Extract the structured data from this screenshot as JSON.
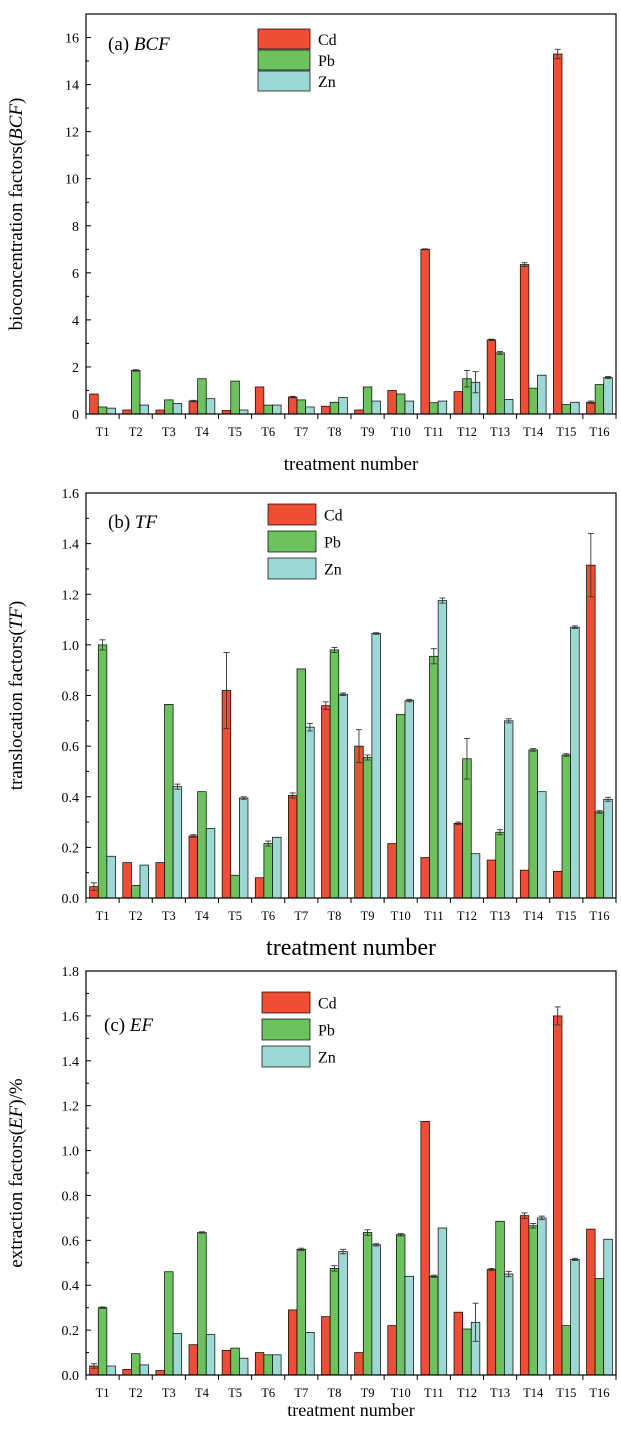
{
  "colors": {
    "Cd": "#f04e34",
    "Pb": "#6cc25c",
    "Zn": "#9ed8d4"
  },
  "chart_data": [
    {
      "type": "bar",
      "title_prefix": "(a) ",
      "title_italic": "BCF",
      "ylabel": "bioconcentration factors(BCF)",
      "xlabel": "treatment number",
      "ylim": [
        0,
        17
      ],
      "yticks": [
        0,
        2,
        4,
        6,
        8,
        10,
        12,
        14,
        16
      ],
      "ytick_labels": [
        "0",
        "2",
        "4",
        "6",
        "8",
        "10",
        "12",
        "14",
        "16"
      ],
      "categories": [
        "T1",
        "T2",
        "T3",
        "T4",
        "T5",
        "T6",
        "T7",
        "T8",
        "T9",
        "T10",
        "T11",
        "T12",
        "T13",
        "T14",
        "T15",
        "T16"
      ],
      "series": [
        {
          "name": "Cd",
          "values": [
            0.85,
            0.17,
            0.17,
            0.55,
            0.15,
            1.15,
            0.72,
            0.33,
            0.17,
            1.0,
            7.0,
            0.95,
            3.15,
            6.35,
            15.3,
            0.5
          ],
          "errors": [
            0,
            0,
            0,
            0.03,
            0,
            0,
            0.03,
            0,
            0,
            0,
            0.02,
            0,
            0.03,
            0.08,
            0.2,
            0.05
          ]
        },
        {
          "name": "Pb",
          "values": [
            0.3,
            1.85,
            0.6,
            1.5,
            1.4,
            0.38,
            0.6,
            0.5,
            1.15,
            0.85,
            0.48,
            1.5,
            2.6,
            1.1,
            0.4,
            1.25
          ],
          "errors": [
            0,
            0.03,
            0,
            0,
            0,
            0,
            0,
            0,
            0,
            0,
            0,
            0.35,
            0.06,
            0,
            0,
            0
          ]
        },
        {
          "name": "Zn",
          "values": [
            0.25,
            0.38,
            0.45,
            0.65,
            0.17,
            0.38,
            0.3,
            0.7,
            0.55,
            0.55,
            0.55,
            1.35,
            0.62,
            1.65,
            0.5,
            1.55
          ],
          "errors": [
            0,
            0,
            0,
            0,
            0,
            0,
            0,
            0,
            0,
            0,
            0,
            0.45,
            0,
            0,
            0,
            0.04
          ]
        }
      ]
    },
    {
      "type": "bar",
      "title_prefix": "(b) ",
      "title_italic": "TF",
      "ylabel": "translocation factors(TF)",
      "xlabel": "treatment number",
      "ylim": [
        0,
        1.6
      ],
      "yticks": [
        0,
        0.2,
        0.4,
        0.6,
        0.8,
        1.0,
        1.2,
        1.4,
        1.6
      ],
      "ytick_labels": [
        "0.0",
        "0.2",
        "0.4",
        "0.6",
        "0.8",
        "1.0",
        "1.2",
        "1.4",
        "1.6"
      ],
      "categories": [
        "T1",
        "T2",
        "T3",
        "T4",
        "T5",
        "T6",
        "T7",
        "T8",
        "T9",
        "T10",
        "T11",
        "T12",
        "T13",
        "T14",
        "T15",
        "T16"
      ],
      "series": [
        {
          "name": "Cd",
          "values": [
            0.045,
            0.14,
            0.14,
            0.245,
            0.82,
            0.08,
            0.405,
            0.76,
            0.6,
            0.215,
            0.16,
            0.295,
            0.15,
            0.11,
            0.105,
            1.315
          ],
          "errors": [
            0.015,
            0,
            0,
            0.005,
            0.15,
            0,
            0.01,
            0.015,
            0.065,
            0,
            0,
            0.005,
            0,
            0,
            0,
            0.125
          ]
        },
        {
          "name": "Pb",
          "values": [
            1.0,
            0.05,
            0.765,
            0.42,
            0.09,
            0.215,
            0.905,
            0.98,
            0.555,
            0.725,
            0.955,
            0.55,
            0.26,
            0.585,
            0.565,
            0.34
          ],
          "errors": [
            0.02,
            0,
            0,
            0,
            0,
            0.01,
            0,
            0.01,
            0.01,
            0,
            0.03,
            0.08,
            0.01,
            0.005,
            0.005,
            0.005
          ]
        },
        {
          "name": "Zn",
          "values": [
            0.165,
            0.13,
            0.44,
            0.275,
            0.395,
            0.24,
            0.675,
            0.805,
            1.045,
            0.78,
            1.175,
            0.175,
            0.7,
            0.42,
            1.07,
            0.39
          ],
          "errors": [
            0,
            0,
            0.01,
            0,
            0.005,
            0,
            0.015,
            0.005,
            0.003,
            0.005,
            0.01,
            0,
            0.008,
            0,
            0.005,
            0.008
          ]
        }
      ]
    },
    {
      "type": "bar",
      "title_prefix": "(c) ",
      "title_italic": "EF",
      "ylabel": "extraction factors(EF)/%",
      "xlabel": "treatment number",
      "ylim": [
        0,
        1.8
      ],
      "yticks": [
        0,
        0.2,
        0.4,
        0.6,
        0.8,
        1.0,
        1.2,
        1.4,
        1.6,
        1.8
      ],
      "ytick_labels": [
        "0.0",
        "0.2",
        "0.4",
        "0.6",
        "0.8",
        "1.0",
        "1.2",
        "1.4",
        "1.6",
        "1.8"
      ],
      "categories": [
        "T1",
        "T2",
        "T3",
        "T4",
        "T5",
        "T6",
        "T7",
        "T8",
        "T9",
        "T10",
        "T11",
        "T12",
        "T13",
        "T14",
        "T15",
        "T16"
      ],
      "series": [
        {
          "name": "Cd",
          "values": [
            0.04,
            0.025,
            0.02,
            0.135,
            0.11,
            0.1,
            0.29,
            0.26,
            0.1,
            0.22,
            1.13,
            0.28,
            0.47,
            0.71,
            1.6,
            0.65
          ],
          "errors": [
            0.01,
            0,
            0,
            0,
            0,
            0,
            0,
            0,
            0,
            0,
            0,
            0,
            0.005,
            0.012,
            0.04,
            0
          ]
        },
        {
          "name": "Pb",
          "values": [
            0.3,
            0.095,
            0.46,
            0.635,
            0.12,
            0.09,
            0.56,
            0.475,
            0.635,
            0.625,
            0.44,
            0.205,
            0.685,
            0.665,
            0.22,
            0.43
          ],
          "errors": [
            0.003,
            0,
            0,
            0.003,
            0,
            0,
            0.005,
            0.012,
            0.012,
            0.005,
            0.005,
            0,
            0,
            0.01,
            0,
            0
          ]
        },
        {
          "name": "Zn",
          "values": [
            0.04,
            0.045,
            0.185,
            0.18,
            0.075,
            0.09,
            0.19,
            0.55,
            0.58,
            0.44,
            0.655,
            0.235,
            0.45,
            0.7,
            0.515,
            0.605
          ],
          "errors": [
            0,
            0,
            0,
            0,
            0,
            0,
            0,
            0.01,
            0.005,
            0,
            0,
            0.085,
            0.012,
            0.008,
            0.005,
            0
          ]
        }
      ]
    }
  ]
}
